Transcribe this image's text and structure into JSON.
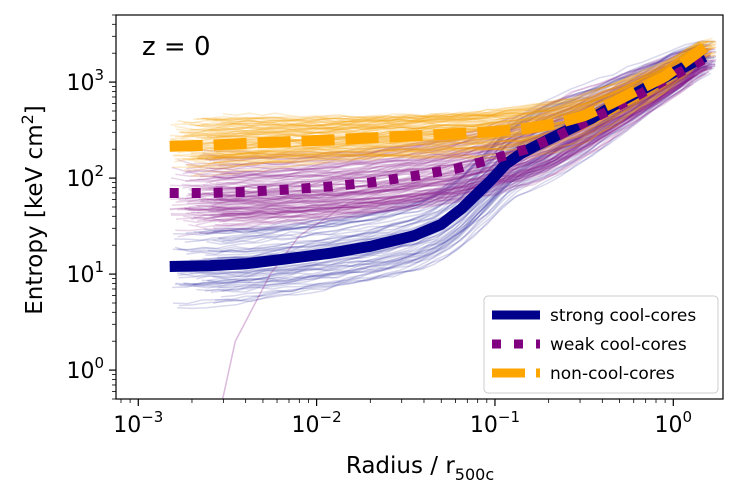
{
  "chart_data": {
    "type": "line",
    "title": "",
    "annotation": "z = 0",
    "xlabel": "Radius / r",
    "xlabel_sub": "500c",
    "ylabel": "Entropy [keV cm",
    "ylabel_sup": "2",
    "ylabel_end": "]",
    "xscale": "log",
    "yscale": "log",
    "xlim": [
      0.00075,
      1.9
    ],
    "ylim": [
      0.5,
      5000
    ],
    "x_ticks": [
      {
        "value": 0.001,
        "base": "10",
        "exp": "−3"
      },
      {
        "value": 0.01,
        "base": "10",
        "exp": "−2"
      },
      {
        "value": 0.1,
        "base": "10",
        "exp": "−1"
      },
      {
        "value": 1,
        "base": "10",
        "exp": "0"
      }
    ],
    "y_ticks": [
      {
        "value": 1,
        "base": "10",
        "exp": "0"
      },
      {
        "value": 10,
        "base": "10",
        "exp": "1"
      },
      {
        "value": 100,
        "base": "10",
        "exp": "2"
      },
      {
        "value": 1000,
        "base": "10",
        "exp": "3"
      }
    ],
    "legend_position": "lower-right",
    "series": [
      {
        "name": "strong cool-cores",
        "color": "#00008b",
        "style": "solid",
        "x": [
          0.0015,
          0.0025,
          0.004,
          0.007,
          0.012,
          0.02,
          0.035,
          0.05,
          0.065,
          0.08,
          0.095,
          0.115,
          0.14,
          0.18,
          0.25,
          0.35,
          0.5,
          0.7,
          1.0,
          1.5
        ],
        "y": [
          12,
          12.2,
          12.8,
          14.5,
          16.5,
          19.5,
          25,
          33,
          48,
          70,
          95,
          140,
          180,
          230,
          310,
          420,
          620,
          870,
          1250,
          1850
        ]
      },
      {
        "name": "weak cool-cores",
        "color": "#800080",
        "style": "dotted",
        "x": [
          0.0015,
          0.0025,
          0.004,
          0.007,
          0.012,
          0.02,
          0.035,
          0.06,
          0.1,
          0.15,
          0.22,
          0.32,
          0.45,
          0.65,
          0.9,
          1.5
        ],
        "y": [
          70,
          70,
          72,
          76,
          82,
          90,
          105,
          125,
          160,
          200,
          270,
          380,
          520,
          750,
          1050,
          1750
        ]
      },
      {
        "name": "non-cool-cores",
        "color": "#ffa500",
        "style": "dashed",
        "x": [
          0.0015,
          0.0025,
          0.004,
          0.007,
          0.012,
          0.02,
          0.035,
          0.06,
          0.1,
          0.15,
          0.22,
          0.32,
          0.45,
          0.65,
          0.9,
          1.5
        ],
        "y": [
          215,
          220,
          230,
          240,
          250,
          262,
          275,
          290,
          305,
          330,
          370,
          450,
          600,
          850,
          1150,
          2300
        ]
      }
    ]
  }
}
